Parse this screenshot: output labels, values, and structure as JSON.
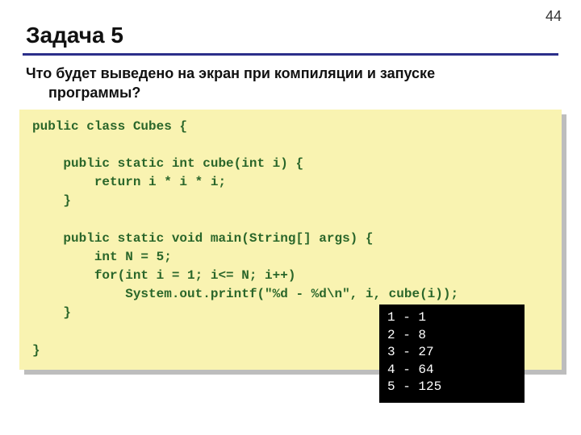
{
  "page_number": "44",
  "heading": "Задача 5",
  "heading_rule_color": "#2b2e8a",
  "question_line1": "Что будет выведено на экран при компиляции и запуске",
  "question_line2": "программы?",
  "code": {
    "background_color": "#f9f3b1",
    "text_color": "#2a662a",
    "text": "public class Cubes {\n\n    public static int cube(int i) {\n        return i * i * i;\n    }\n\n    public static void main(String[] args) {\n        int N = 5;\n        for(int i = 1; i<= N; i++)\n            System.out.printf(\"%d - %d\\n\", i, cube(i));\n    }\n\n}"
  },
  "output": {
    "background_color": "#000000",
    "text_color": "#ffffff",
    "text": "1 - 1\n2 - 8\n3 - 27\n4 - 64\n5 - 125"
  }
}
